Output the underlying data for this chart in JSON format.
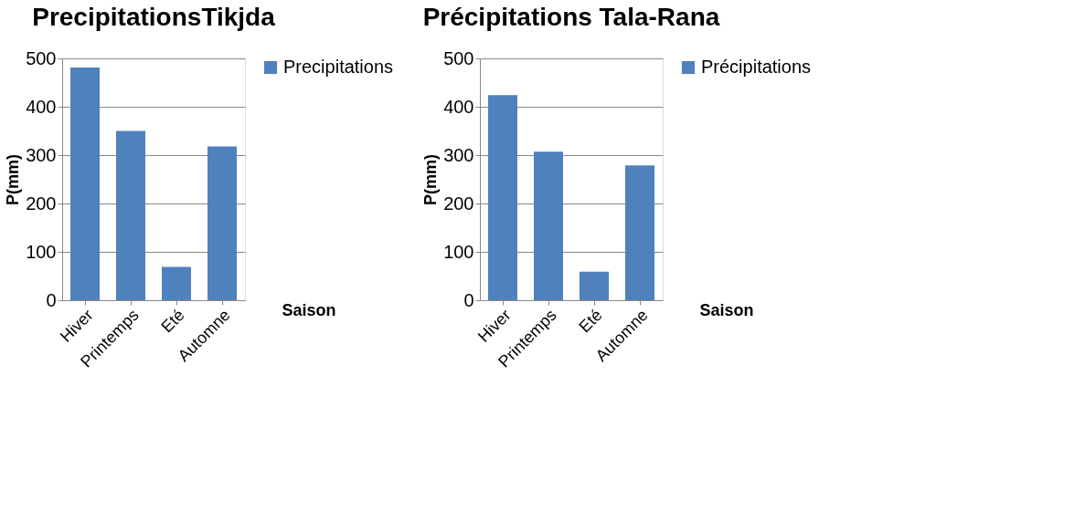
{
  "chart_data": [
    {
      "type": "bar",
      "title": "PrecipitationsTikjda",
      "xlabel": "Saison",
      "ylabel": "P(mm)",
      "categories": [
        "Hiver",
        "Printemps",
        "Eté",
        "Automne"
      ],
      "series": [
        {
          "name": "Precipitations",
          "color": "#4f81bd",
          "values": [
            481,
            350,
            69,
            318
          ]
        }
      ],
      "ylim": [
        0,
        500
      ],
      "yticks": [
        0,
        100,
        200,
        300,
        400,
        500
      ],
      "grid": "y",
      "legend": "right"
    },
    {
      "type": "bar",
      "title": "Précipitations Tala-Rana",
      "xlabel": "Saison",
      "ylabel": "P(mm)",
      "categories": [
        "Hiver",
        "Printemps",
        "Eté",
        "Automne"
      ],
      "series": [
        {
          "name": "Précipitations",
          "color": "#4f81bd",
          "values": [
            424,
            307,
            59,
            279
          ]
        }
      ],
      "ylim": [
        0,
        500
      ],
      "yticks": [
        0,
        100,
        200,
        300,
        400,
        500
      ],
      "grid": "y",
      "legend": "right"
    }
  ]
}
